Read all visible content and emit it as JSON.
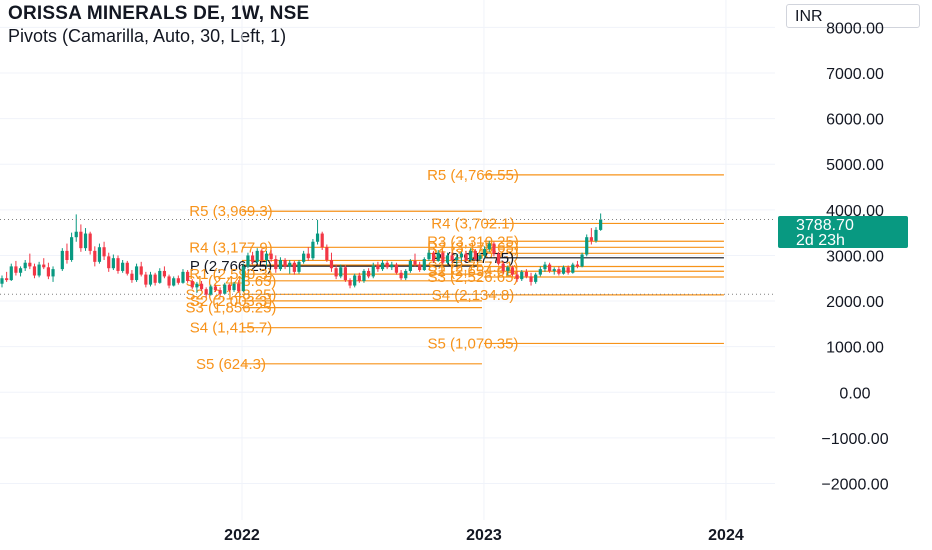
{
  "header": {
    "title": "ORISSA MINERALS DE, 1W, NSE",
    "subtitle": "Pivots (Camarilla, Auto, 30, Left, 1)",
    "currency": "INR"
  },
  "last_price": {
    "value": "3788.70",
    "countdown": "2d 23h"
  },
  "colors": {
    "pivot": "#f7931a",
    "up": "#089981",
    "down": "#f23645",
    "pivot_p": "#131722",
    "axis_text": "#131722",
    "grid": "#f0f3fa"
  },
  "chart_data": {
    "type": "candlestick",
    "title": "ORISSA MINERALS DE, 1W, NSE",
    "x_axis": {
      "type": "date",
      "ticks": [
        "2022",
        "2023",
        "2024"
      ],
      "range": [
        "2021-01-01",
        "2024-03-15"
      ]
    },
    "y_axis": {
      "ticks": [
        "8000.00",
        "7000.00",
        "6000.00",
        "5000.00",
        "4000.00",
        "3000.00",
        "2000.00",
        "1000.00",
        "0.00",
        "−1000.00",
        "−2000.00"
      ],
      "range": [
        -2800,
        8600
      ]
    },
    "grid": true,
    "pivot_periods": [
      {
        "period": "2021",
        "levels": [
          {
            "name": "R5",
            "label": "R5 (3,969.3)",
            "value": 3969.3
          },
          {
            "name": "R4",
            "label": "R4 (3,177.9)",
            "value": 3177.9
          },
          {
            "name": "R3",
            "label": "",
            "value": 2890
          },
          {
            "name": "R2",
            "label": "",
            "value": 2790
          },
          {
            "name": "P",
            "label": "P (2,766.25)",
            "value": 2766.25
          },
          {
            "name": "R1",
            "label": "R1 (2,590.3)",
            "value": 2590.3
          },
          {
            "name": "S1",
            "label": "S1 (2,443.65)",
            "value": 2443.65
          },
          {
            "name": "S2",
            "label": "S2 (2,148.25)",
            "value": 2148.25
          },
          {
            "name": "S2b",
            "label": "S2 (2,003.3)",
            "value": 2003.3
          },
          {
            "name": "S3",
            "label": "S3 (1,856.25)",
            "value": 1856.25
          },
          {
            "name": "S4",
            "label": "S4 (1,415.7)",
            "value": 1415.7
          },
          {
            "name": "S5",
            "label": "S5 (624.3)",
            "value": 624.3
          }
        ]
      },
      {
        "period": "2022",
        "levels": [
          {
            "name": "R5",
            "label": "R5 (4,766.55)",
            "value": 4766.55
          },
          {
            "name": "R4",
            "label": "R4 (3,702.1)",
            "value": 3702.1
          },
          {
            "name": "R3",
            "label": "R3 (3,310.25)",
            "value": 3310.25
          },
          {
            "name": "R2",
            "label": "R2 (3,178.65)",
            "value": 3178.65
          },
          {
            "name": "R1",
            "label": "R1 (3,046.75)",
            "value": 3046.75
          },
          {
            "name": "P",
            "label": "P (2,947.75)",
            "value": 2947.75
          },
          {
            "name": "S1",
            "label": "S1 (2,757.21)",
            "value": 2757.21
          },
          {
            "name": "S2",
            "label": "S2 (2,654.05)",
            "value": 2654.05
          },
          {
            "name": "S3",
            "label": "S3 (2,526.65)",
            "value": 2526.65
          },
          {
            "name": "S4",
            "label": "S4 (2,134.8)",
            "value": 2134.8
          },
          {
            "name": "S5",
            "label": "S5 (1,070.35)",
            "value": 1070.35
          }
        ]
      }
    ],
    "candles": [
      {
        "date": "2021-01-04",
        "o": 2380,
        "h": 2560,
        "l": 2300,
        "c": 2500
      },
      {
        "date": "2021-01-11",
        "o": 2500,
        "h": 2640,
        "l": 2420,
        "c": 2460
      },
      {
        "date": "2021-01-18",
        "o": 2460,
        "h": 2820,
        "l": 2440,
        "c": 2760
      },
      {
        "date": "2021-01-25",
        "o": 2760,
        "h": 2880,
        "l": 2560,
        "c": 2620
      },
      {
        "date": "2021-02-01",
        "o": 2620,
        "h": 2760,
        "l": 2540,
        "c": 2720
      },
      {
        "date": "2021-02-08",
        "o": 2720,
        "h": 2900,
        "l": 2660,
        "c": 2840
      },
      {
        "date": "2021-02-15",
        "o": 2840,
        "h": 3040,
        "l": 2700,
        "c": 2760
      },
      {
        "date": "2021-02-22",
        "o": 2760,
        "h": 2820,
        "l": 2500,
        "c": 2560
      },
      {
        "date": "2021-03-01",
        "o": 2560,
        "h": 2860,
        "l": 2520,
        "c": 2800
      },
      {
        "date": "2021-03-08",
        "o": 2800,
        "h": 2940,
        "l": 2700,
        "c": 2740
      },
      {
        "date": "2021-03-15",
        "o": 2740,
        "h": 2840,
        "l": 2480,
        "c": 2540
      },
      {
        "date": "2021-03-22",
        "o": 2540,
        "h": 2760,
        "l": 2420,
        "c": 2700
      },
      {
        "date": "2021-04-05",
        "o": 2700,
        "h": 3160,
        "l": 2660,
        "c": 3100
      },
      {
        "date": "2021-04-12",
        "o": 3100,
        "h": 3260,
        "l": 2820,
        "c": 2900
      },
      {
        "date": "2021-04-19",
        "o": 2900,
        "h": 3500,
        "l": 2860,
        "c": 3400
      },
      {
        "date": "2021-04-26",
        "o": 3400,
        "h": 3900,
        "l": 3300,
        "c": 3520
      },
      {
        "date": "2021-05-03",
        "o": 3520,
        "h": 3680,
        "l": 3080,
        "c": 3160
      },
      {
        "date": "2021-05-10",
        "o": 3160,
        "h": 3600,
        "l": 3100,
        "c": 3480
      },
      {
        "date": "2021-05-17",
        "o": 3480,
        "h": 3520,
        "l": 3020,
        "c": 3100
      },
      {
        "date": "2021-05-24",
        "o": 3100,
        "h": 3200,
        "l": 2760,
        "c": 2860
      },
      {
        "date": "2021-05-31",
        "o": 2860,
        "h": 3260,
        "l": 2820,
        "c": 3180
      },
      {
        "date": "2021-06-07",
        "o": 3180,
        "h": 3300,
        "l": 2900,
        "c": 2980
      },
      {
        "date": "2021-06-14",
        "o": 2980,
        "h": 3060,
        "l": 2640,
        "c": 2720
      },
      {
        "date": "2021-06-21",
        "o": 2720,
        "h": 3020,
        "l": 2680,
        "c": 2940
      },
      {
        "date": "2021-06-28",
        "o": 2940,
        "h": 3000,
        "l": 2600,
        "c": 2660
      },
      {
        "date": "2021-07-05",
        "o": 2660,
        "h": 2900,
        "l": 2620,
        "c": 2840
      },
      {
        "date": "2021-07-12",
        "o": 2840,
        "h": 2880,
        "l": 2560,
        "c": 2600
      },
      {
        "date": "2021-07-19",
        "o": 2600,
        "h": 2680,
        "l": 2400,
        "c": 2460
      },
      {
        "date": "2021-07-26",
        "o": 2460,
        "h": 2820,
        "l": 2420,
        "c": 2760
      },
      {
        "date": "2021-08-02",
        "o": 2760,
        "h": 2860,
        "l": 2540,
        "c": 2580
      },
      {
        "date": "2021-08-09",
        "o": 2580,
        "h": 2640,
        "l": 2300,
        "c": 2360
      },
      {
        "date": "2021-08-16",
        "o": 2360,
        "h": 2640,
        "l": 2320,
        "c": 2580
      },
      {
        "date": "2021-08-23",
        "o": 2580,
        "h": 2620,
        "l": 2340,
        "c": 2400
      },
      {
        "date": "2021-08-30",
        "o": 2400,
        "h": 2720,
        "l": 2380,
        "c": 2660
      },
      {
        "date": "2021-09-06",
        "o": 2660,
        "h": 2760,
        "l": 2500,
        "c": 2540
      },
      {
        "date": "2021-09-13",
        "o": 2540,
        "h": 2580,
        "l": 2280,
        "c": 2340
      },
      {
        "date": "2021-09-20",
        "o": 2340,
        "h": 2540,
        "l": 2320,
        "c": 2500
      },
      {
        "date": "2021-09-27",
        "o": 2500,
        "h": 2560,
        "l": 2360,
        "c": 2400
      },
      {
        "date": "2021-10-04",
        "o": 2400,
        "h": 2700,
        "l": 2380,
        "c": 2640
      },
      {
        "date": "2021-10-11",
        "o": 2640,
        "h": 2680,
        "l": 2400,
        "c": 2440
      },
      {
        "date": "2021-10-18",
        "o": 2440,
        "h": 2480,
        "l": 2260,
        "c": 2300
      },
      {
        "date": "2021-10-25",
        "o": 2300,
        "h": 2420,
        "l": 2180,
        "c": 2380
      },
      {
        "date": "2021-11-01",
        "o": 2380,
        "h": 2440,
        "l": 2220,
        "c": 2260
      },
      {
        "date": "2021-11-08",
        "o": 2260,
        "h": 2300,
        "l": 2080,
        "c": 2140
      },
      {
        "date": "2021-11-15",
        "o": 2140,
        "h": 2360,
        "l": 2120,
        "c": 2320
      },
      {
        "date": "2021-11-22",
        "o": 2320,
        "h": 2360,
        "l": 2200,
        "c": 2240
      },
      {
        "date": "2021-11-29",
        "o": 2240,
        "h": 2300,
        "l": 2100,
        "c": 2160
      },
      {
        "date": "2021-12-06",
        "o": 2160,
        "h": 2400,
        "l": 2140,
        "c": 2360
      },
      {
        "date": "2021-12-13",
        "o": 2360,
        "h": 2380,
        "l": 2200,
        "c": 2240
      },
      {
        "date": "2021-12-20",
        "o": 2240,
        "h": 2420,
        "l": 2200,
        "c": 2380
      },
      {
        "date": "2021-12-27",
        "o": 2380,
        "h": 2460,
        "l": 2180,
        "c": 2220
      },
      {
        "date": "2022-01-03",
        "o": 2220,
        "h": 2820,
        "l": 2200,
        "c": 2760
      },
      {
        "date": "2022-01-10",
        "o": 2760,
        "h": 3060,
        "l": 2720,
        "c": 3000
      },
      {
        "date": "2022-01-17",
        "o": 3000,
        "h": 3080,
        "l": 2800,
        "c": 2860
      },
      {
        "date": "2022-01-24",
        "o": 2860,
        "h": 3160,
        "l": 2820,
        "c": 3100
      },
      {
        "date": "2022-01-31",
        "o": 3100,
        "h": 3140,
        "l": 2840,
        "c": 2900
      },
      {
        "date": "2022-02-07",
        "o": 2900,
        "h": 3100,
        "l": 2760,
        "c": 3040
      },
      {
        "date": "2022-02-14",
        "o": 3040,
        "h": 3120,
        "l": 2860,
        "c": 2920
      },
      {
        "date": "2022-02-21",
        "o": 2920,
        "h": 3000,
        "l": 2620,
        "c": 2700
      },
      {
        "date": "2022-02-28",
        "o": 2700,
        "h": 2960,
        "l": 2660,
        "c": 2900
      },
      {
        "date": "2022-03-07",
        "o": 2900,
        "h": 2940,
        "l": 2700,
        "c": 2760
      },
      {
        "date": "2022-03-14",
        "o": 2760,
        "h": 2900,
        "l": 2600,
        "c": 2840
      },
      {
        "date": "2022-03-21",
        "o": 2840,
        "h": 2880,
        "l": 2580,
        "c": 2640
      },
      {
        "date": "2022-03-28",
        "o": 2640,
        "h": 2900,
        "l": 2600,
        "c": 2860
      },
      {
        "date": "2022-04-04",
        "o": 2860,
        "h": 3100,
        "l": 2820,
        "c": 3040
      },
      {
        "date": "2022-04-11",
        "o": 3040,
        "h": 3180,
        "l": 2880,
        "c": 2940
      },
      {
        "date": "2022-04-18",
        "o": 2940,
        "h": 3360,
        "l": 2900,
        "c": 3300
      },
      {
        "date": "2022-04-25",
        "o": 3300,
        "h": 3780,
        "l": 3240,
        "c": 3480
      },
      {
        "date": "2022-05-02",
        "o": 3480,
        "h": 3520,
        "l": 3120,
        "c": 3180
      },
      {
        "date": "2022-05-09",
        "o": 3180,
        "h": 3240,
        "l": 2860,
        "c": 2900
      },
      {
        "date": "2022-05-16",
        "o": 2900,
        "h": 3060,
        "l": 2640,
        "c": 2720
      },
      {
        "date": "2022-05-23",
        "o": 2720,
        "h": 2800,
        "l": 2480,
        "c": 2540
      },
      {
        "date": "2022-05-30",
        "o": 2540,
        "h": 2800,
        "l": 2500,
        "c": 2740
      },
      {
        "date": "2022-06-06",
        "o": 2740,
        "h": 2780,
        "l": 2420,
        "c": 2460
      },
      {
        "date": "2022-06-13",
        "o": 2460,
        "h": 2500,
        "l": 2280,
        "c": 2340
      },
      {
        "date": "2022-06-20",
        "o": 2340,
        "h": 2600,
        "l": 2300,
        "c": 2560
      },
      {
        "date": "2022-06-27",
        "o": 2560,
        "h": 2620,
        "l": 2400,
        "c": 2440
      },
      {
        "date": "2022-07-04",
        "o": 2440,
        "h": 2700,
        "l": 2400,
        "c": 2660
      },
      {
        "date": "2022-07-11",
        "o": 2660,
        "h": 2720,
        "l": 2500,
        "c": 2540
      },
      {
        "date": "2022-07-18",
        "o": 2540,
        "h": 2840,
        "l": 2500,
        "c": 2780
      },
      {
        "date": "2022-07-25",
        "o": 2780,
        "h": 2860,
        "l": 2640,
        "c": 2700
      },
      {
        "date": "2022-08-01",
        "o": 2700,
        "h": 2900,
        "l": 2660,
        "c": 2840
      },
      {
        "date": "2022-08-08",
        "o": 2840,
        "h": 2880,
        "l": 2700,
        "c": 2740
      },
      {
        "date": "2022-08-15",
        "o": 2740,
        "h": 2860,
        "l": 2680,
        "c": 2800
      },
      {
        "date": "2022-08-22",
        "o": 2800,
        "h": 2840,
        "l": 2580,
        "c": 2620
      },
      {
        "date": "2022-08-29",
        "o": 2620,
        "h": 2680,
        "l": 2460,
        "c": 2500
      },
      {
        "date": "2022-09-05",
        "o": 2500,
        "h": 2700,
        "l": 2460,
        "c": 2660
      },
      {
        "date": "2022-09-12",
        "o": 2660,
        "h": 2920,
        "l": 2620,
        "c": 2880
      },
      {
        "date": "2022-09-19",
        "o": 2880,
        "h": 3040,
        "l": 2760,
        "c": 2800
      },
      {
        "date": "2022-09-26",
        "o": 2800,
        "h": 2860,
        "l": 2640,
        "c": 2680
      },
      {
        "date": "2022-10-03",
        "o": 2680,
        "h": 2960,
        "l": 2660,
        "c": 2920
      },
      {
        "date": "2022-10-10",
        "o": 2920,
        "h": 3120,
        "l": 2880,
        "c": 3060
      },
      {
        "date": "2022-10-17",
        "o": 3060,
        "h": 3100,
        "l": 2840,
        "c": 2880
      },
      {
        "date": "2022-10-24",
        "o": 2880,
        "h": 3120,
        "l": 2860,
        "c": 3060
      },
      {
        "date": "2022-10-31",
        "o": 3060,
        "h": 3100,
        "l": 2800,
        "c": 2840
      },
      {
        "date": "2022-11-07",
        "o": 2840,
        "h": 3060,
        "l": 2800,
        "c": 3000
      },
      {
        "date": "2022-11-14",
        "o": 3000,
        "h": 3060,
        "l": 2840,
        "c": 2900
      },
      {
        "date": "2022-11-21",
        "o": 2900,
        "h": 3040,
        "l": 2780,
        "c": 2960
      },
      {
        "date": "2022-11-28",
        "o": 2960,
        "h": 3080,
        "l": 2880,
        "c": 3040
      },
      {
        "date": "2022-12-05",
        "o": 3040,
        "h": 3100,
        "l": 2860,
        "c": 2900
      },
      {
        "date": "2022-12-12",
        "o": 2900,
        "h": 3160,
        "l": 2860,
        "c": 3100
      },
      {
        "date": "2022-12-19",
        "o": 3100,
        "h": 3140,
        "l": 2880,
        "c": 2920
      },
      {
        "date": "2022-12-26",
        "o": 2920,
        "h": 3060,
        "l": 2880,
        "c": 3000
      },
      {
        "date": "2023-01-02",
        "o": 3000,
        "h": 3200,
        "l": 2940,
        "c": 3140
      },
      {
        "date": "2023-01-09",
        "o": 3140,
        "h": 3320,
        "l": 3080,
        "c": 3260
      },
      {
        "date": "2023-01-16",
        "o": 3260,
        "h": 3300,
        "l": 2980,
        "c": 3040
      },
      {
        "date": "2023-01-23",
        "o": 3040,
        "h": 3080,
        "l": 2780,
        "c": 2820
      },
      {
        "date": "2023-01-30",
        "o": 2820,
        "h": 2880,
        "l": 2600,
        "c": 2660
      },
      {
        "date": "2023-02-06",
        "o": 2660,
        "h": 2780,
        "l": 2560,
        "c": 2740
      },
      {
        "date": "2023-02-13",
        "o": 2740,
        "h": 2780,
        "l": 2540,
        "c": 2580
      },
      {
        "date": "2023-02-20",
        "o": 2580,
        "h": 2660,
        "l": 2420,
        "c": 2480
      },
      {
        "date": "2023-02-27",
        "o": 2480,
        "h": 2680,
        "l": 2440,
        "c": 2640
      },
      {
        "date": "2023-03-06",
        "o": 2640,
        "h": 2700,
        "l": 2500,
        "c": 2540
      },
      {
        "date": "2023-03-13",
        "o": 2540,
        "h": 2620,
        "l": 2340,
        "c": 2420
      },
      {
        "date": "2023-03-20",
        "o": 2420,
        "h": 2620,
        "l": 2380,
        "c": 2580
      },
      {
        "date": "2023-03-27",
        "o": 2580,
        "h": 2760,
        "l": 2540,
        "c": 2700
      },
      {
        "date": "2023-04-03",
        "o": 2700,
        "h": 2860,
        "l": 2640,
        "c": 2800
      },
      {
        "date": "2023-04-10",
        "o": 2800,
        "h": 2840,
        "l": 2620,
        "c": 2660
      },
      {
        "date": "2023-04-17",
        "o": 2660,
        "h": 2740,
        "l": 2580,
        "c": 2700
      },
      {
        "date": "2023-04-24",
        "o": 2700,
        "h": 2760,
        "l": 2560,
        "c": 2600
      },
      {
        "date": "2023-05-01",
        "o": 2600,
        "h": 2780,
        "l": 2580,
        "c": 2740
      },
      {
        "date": "2023-05-08",
        "o": 2740,
        "h": 2780,
        "l": 2580,
        "c": 2620
      },
      {
        "date": "2023-05-15",
        "o": 2620,
        "h": 2840,
        "l": 2600,
        "c": 2800
      },
      {
        "date": "2023-05-22",
        "o": 2800,
        "h": 2880,
        "l": 2720,
        "c": 2760
      },
      {
        "date": "2023-05-29",
        "o": 2760,
        "h": 3060,
        "l": 2740,
        "c": 3020
      },
      {
        "date": "2023-06-05",
        "o": 3020,
        "h": 3460,
        "l": 2980,
        "c": 3400
      },
      {
        "date": "2023-06-12",
        "o": 3400,
        "h": 3600,
        "l": 3240,
        "c": 3320
      },
      {
        "date": "2023-06-19",
        "o": 3320,
        "h": 3620,
        "l": 3280,
        "c": 3560
      },
      {
        "date": "2023-06-26",
        "o": 3560,
        "h": 3920,
        "l": 3540,
        "c": 3788.7
      }
    ]
  }
}
